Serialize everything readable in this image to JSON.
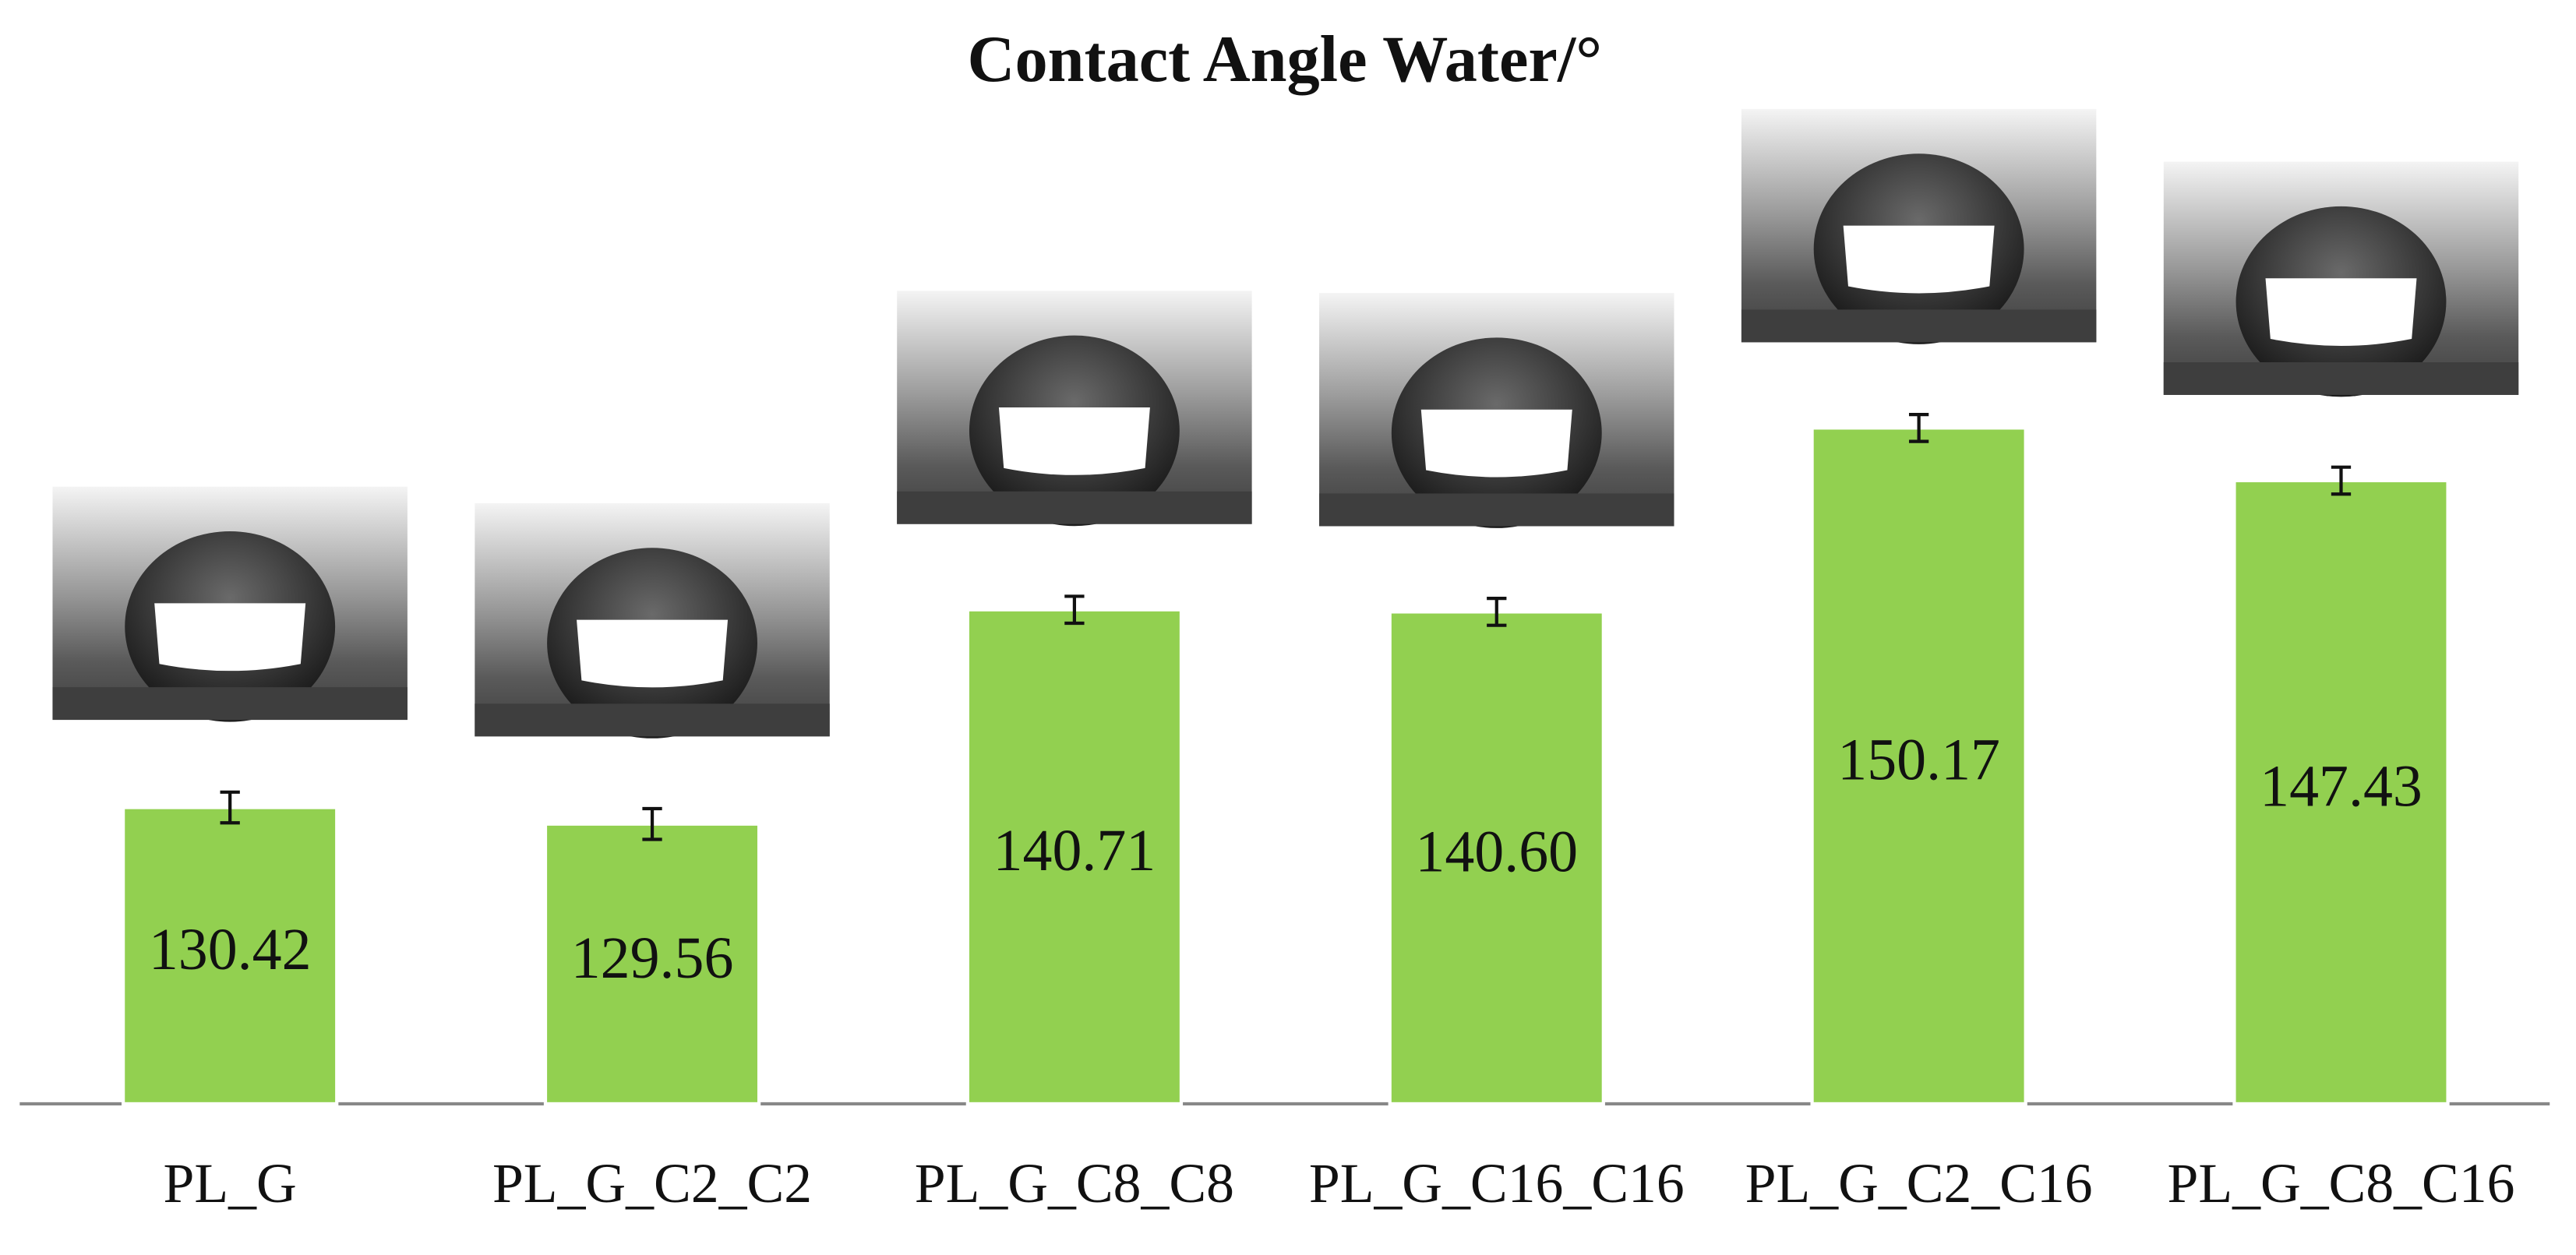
{
  "chart_data": {
    "type": "bar",
    "title": "Contact Angle Water/°",
    "categories": [
      "PL_G",
      "PL_G_C2_C2",
      "PL_G_C8_C8",
      "PL_G_C16_C16",
      "PL_G_C2_C16",
      "PL_G_C8_C16"
    ],
    "values": [
      130.42,
      129.56,
      140.71,
      140.6,
      150.17,
      147.43
    ],
    "value_labels": [
      "130.42",
      "129.56",
      "140.71",
      "140.60",
      "150.17",
      "147.43"
    ],
    "errors": [
      0.8,
      0.8,
      0.7,
      0.7,
      0.7,
      0.7
    ],
    "color": "#92d050",
    "ylim": [
      115,
      160
    ]
  }
}
